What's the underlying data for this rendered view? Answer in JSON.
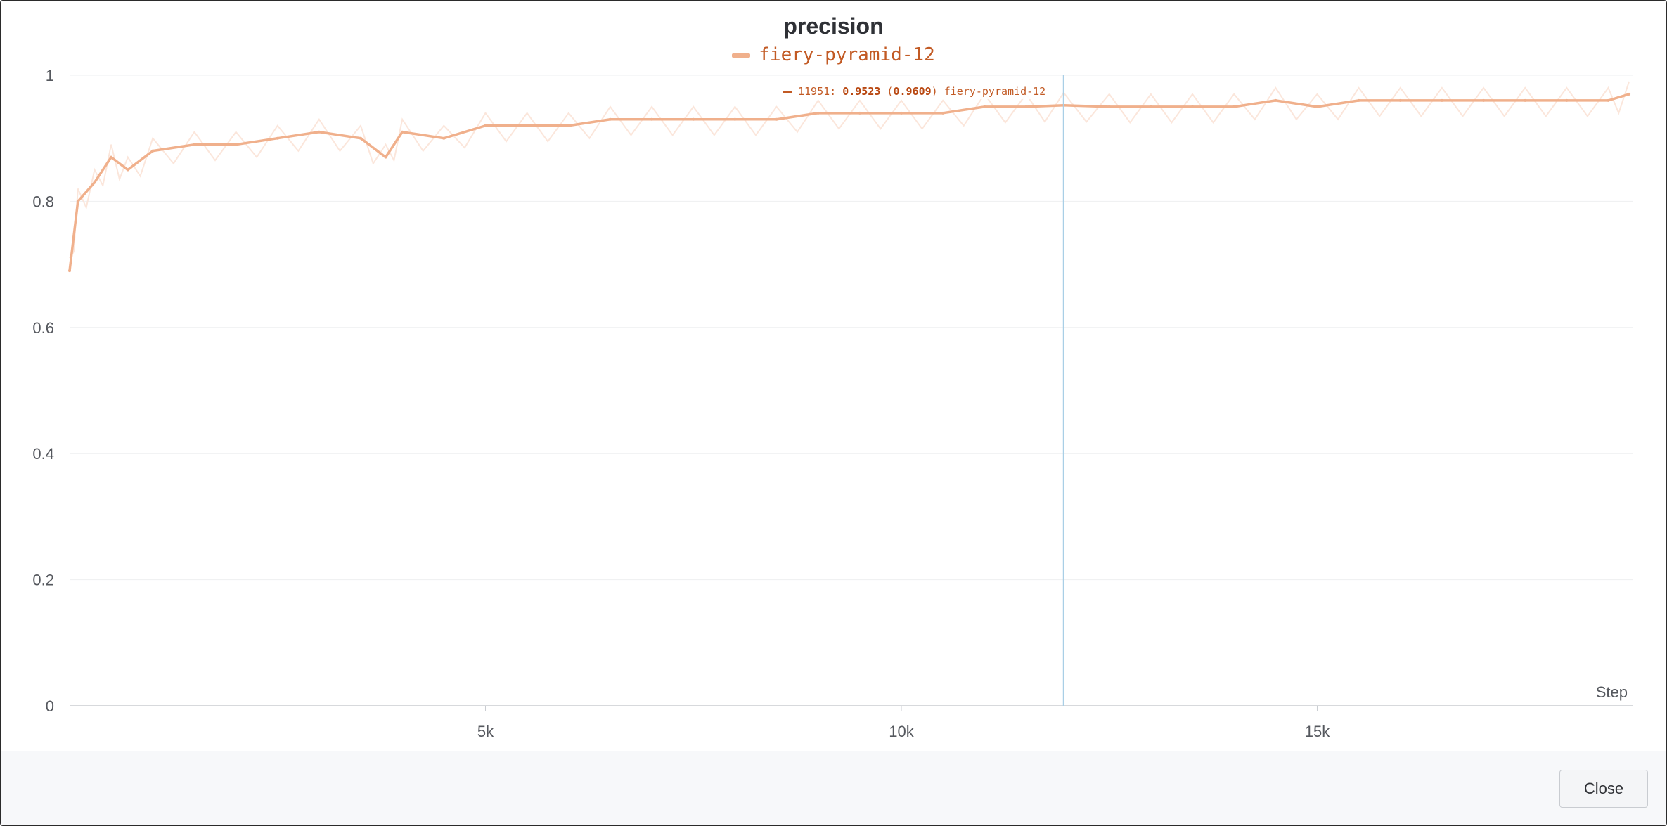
{
  "window": {
    "close_label": "Close"
  },
  "chart_data": {
    "type": "line",
    "title": "precision",
    "xlabel": "Step",
    "ylabel": "",
    "xlim": [
      0,
      18800
    ],
    "ylim": [
      0,
      1
    ],
    "y_ticks": [
      0,
      0.2,
      0.4,
      0.6,
      0.8,
      1
    ],
    "y_tick_labels": [
      "0",
      "0.2",
      "0.4",
      "0.6",
      "0.8",
      "1"
    ],
    "x_ticks": [
      5000,
      10000,
      15000
    ],
    "x_tick_labels": [
      "5k",
      "10k",
      "15k"
    ],
    "grid": true,
    "legend_position": "top-center",
    "series": [
      {
        "name": "fiery-pyramid-12",
        "color": "#f0b08c",
        "raw_color": "#fbe3d7",
        "x": [
          0,
          100,
          300,
          500,
          700,
          1000,
          1500,
          2000,
          2500,
          3000,
          3500,
          3800,
          4000,
          4500,
          5000,
          5500,
          6000,
          6500,
          7000,
          7500,
          8000,
          8500,
          9000,
          9500,
          10000,
          10500,
          11000,
          11500,
          11951,
          12500,
          13000,
          13500,
          14000,
          14500,
          15000,
          15500,
          16000,
          16500,
          17000,
          17500,
          18000,
          18500,
          18750
        ],
        "values": [
          0.69,
          0.8,
          0.83,
          0.87,
          0.85,
          0.88,
          0.89,
          0.89,
          0.9,
          0.91,
          0.9,
          0.87,
          0.91,
          0.9,
          0.92,
          0.92,
          0.92,
          0.93,
          0.93,
          0.93,
          0.93,
          0.93,
          0.94,
          0.94,
          0.94,
          0.94,
          0.95,
          0.95,
          0.9523,
          0.95,
          0.95,
          0.95,
          0.95,
          0.96,
          0.95,
          0.96,
          0.96,
          0.96,
          0.96,
          0.96,
          0.96,
          0.96,
          0.97
        ]
      }
    ],
    "hover": {
      "step": 11951,
      "value": "0.9523",
      "raw_value": "0.9609",
      "run": "fiery-pyramid-12",
      "label_prefix": "11951:"
    }
  }
}
